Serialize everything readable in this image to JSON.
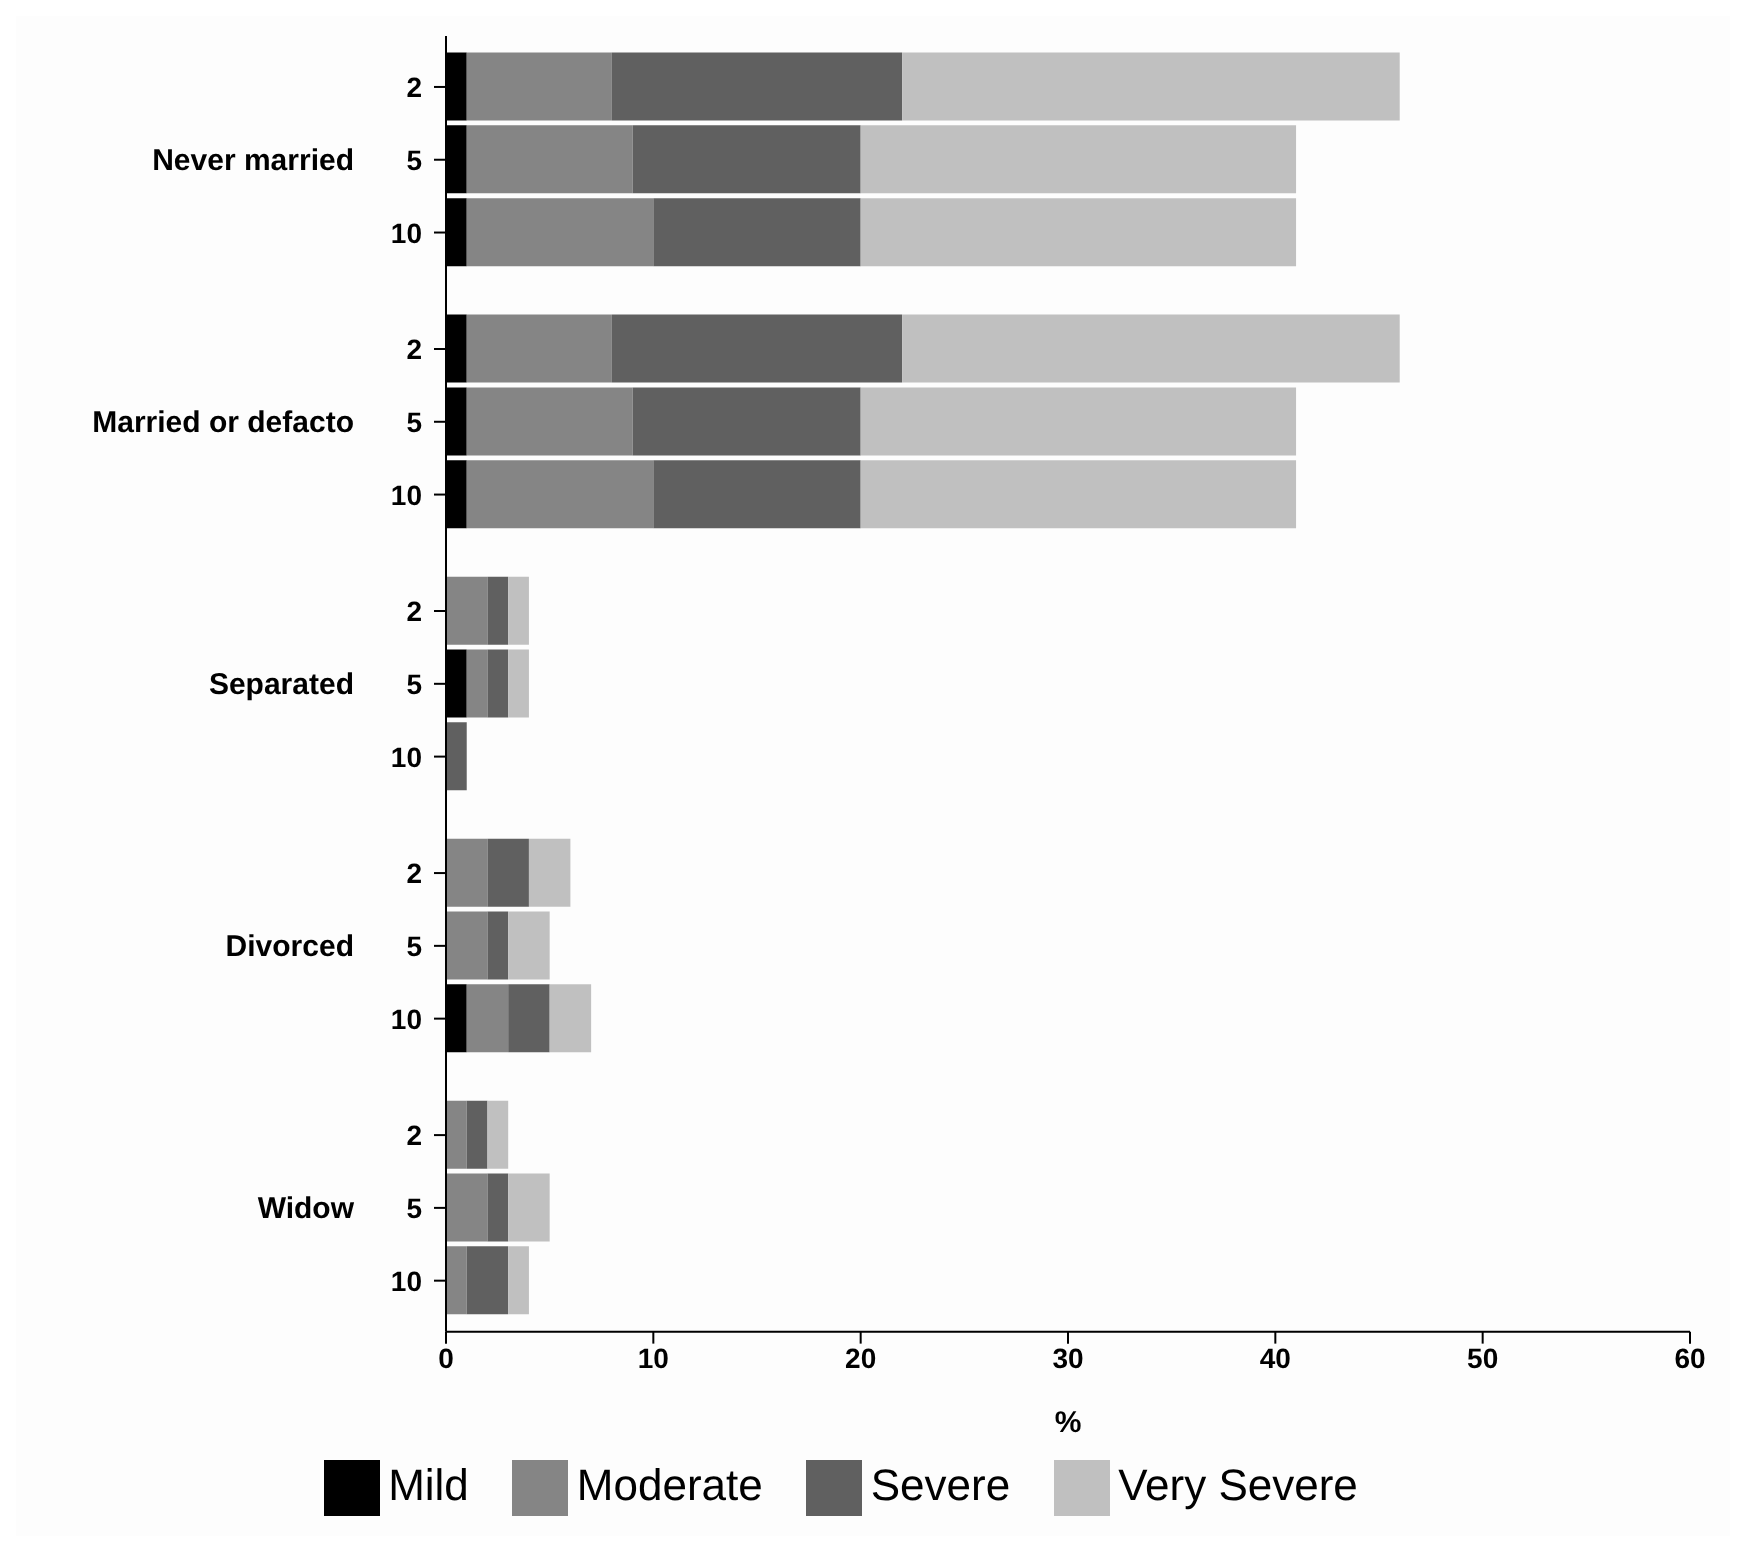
{
  "chart_data": {
    "type": "bar",
    "orientation": "horizontal",
    "stacked": true,
    "xlabel": "%",
    "categories": [
      "2",
      "5",
      "10",
      "2",
      "5",
      "10",
      "2",
      "5",
      "10",
      "2",
      "5",
      "10",
      "2",
      "5",
      "10"
    ],
    "annotations": [
      "Never married",
      "Married or defacto",
      "Separated",
      "Divorced",
      "Widow"
    ],
    "series": [
      {
        "name": "Mild",
        "color": "#000000",
        "values": [
          1,
          1,
          1,
          1,
          1,
          1,
          0,
          1,
          0,
          0,
          0,
          1,
          0,
          0,
          0
        ]
      },
      {
        "name": "Moderate",
        "color": "#858585",
        "values": [
          7,
          8,
          9,
          7,
          8,
          9,
          2,
          1,
          0,
          2,
          2,
          2,
          1,
          2,
          1
        ]
      },
      {
        "name": "Severe",
        "color": "#606060",
        "values": [
          14,
          11,
          10,
          14,
          11,
          10,
          1,
          1,
          1,
          2,
          1,
          2,
          1,
          1,
          2
        ]
      },
      {
        "name": "Very Severe",
        "color": "#c0c0c0",
        "values": [
          24,
          21,
          21,
          24,
          21,
          21,
          1,
          1,
          0,
          2,
          2,
          2,
          1,
          2,
          1
        ]
      }
    ],
    "xlim": [
      0,
      60
    ],
    "xticks": [
      0,
      10,
      20,
      30,
      40,
      50,
      60
    ],
    "grid": false,
    "legend": "bottom"
  }
}
